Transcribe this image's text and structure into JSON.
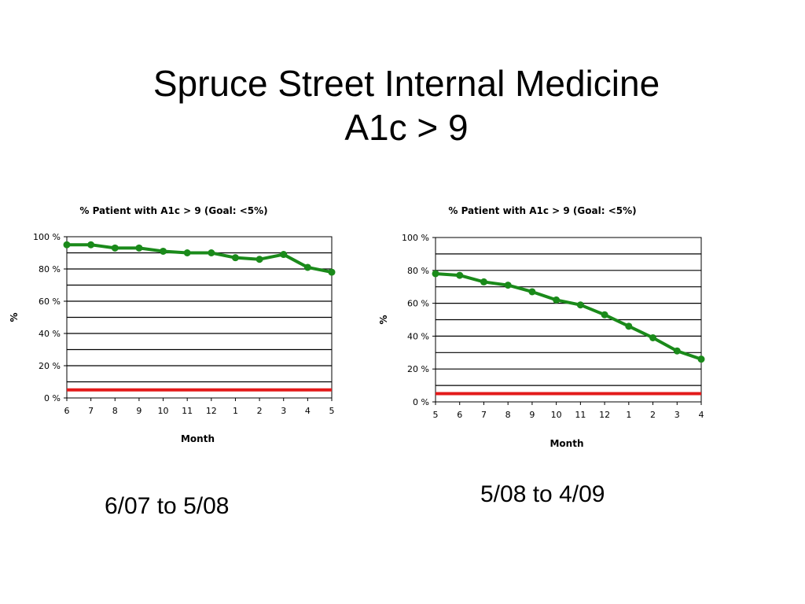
{
  "slide": {
    "title_line1": "Spruce Street Internal Medicine",
    "title_line2": "A1c > 9"
  },
  "captions": {
    "left": "6/07 to 5/08",
    "right": "5/08 to 4/09"
  },
  "colors": {
    "series_line": "#1a8a1a",
    "goal_line": "#e31a1a",
    "grid": "#000000"
  },
  "chart_data": [
    {
      "type": "line",
      "title": "% Patient with A1c > 9 (Goal: <5%)",
      "xlabel": "Month",
      "ylabel": "%",
      "ylim": [
        0,
        100
      ],
      "yticks": [
        0,
        20,
        40,
        60,
        80,
        100
      ],
      "ytick_labels": [
        "0 %",
        "20 %",
        "40 %",
        "60 %",
        "80 %",
        "100 %"
      ],
      "categories": [
        "6",
        "7",
        "8",
        "9",
        "10",
        "11",
        "12",
        "1",
        "2",
        "3",
        "4",
        "5"
      ],
      "series": [
        {
          "values": [
            95,
            95,
            93,
            93,
            91,
            90,
            90,
            87,
            86,
            89,
            81,
            78
          ]
        }
      ],
      "goal": 5,
      "grid": true
    },
    {
      "type": "line",
      "title": "% Patient with A1c > 9 (Goal: <5%)",
      "xlabel": "Month",
      "ylabel": "%",
      "ylim": [
        0,
        100
      ],
      "yticks": [
        0,
        20,
        40,
        60,
        80,
        100
      ],
      "ytick_labels": [
        "0 %",
        "20 %",
        "40 %",
        "60 %",
        "80 %",
        "100 %"
      ],
      "categories": [
        "5",
        "6",
        "7",
        "8",
        "9",
        "10",
        "11",
        "12",
        "1",
        "2",
        "3",
        "4"
      ],
      "series": [
        {
          "values": [
            78,
            77,
            73,
            71,
            67,
            62,
            59,
            53,
            46,
            39,
            31,
            26
          ]
        }
      ],
      "goal": 5,
      "grid": true
    }
  ]
}
